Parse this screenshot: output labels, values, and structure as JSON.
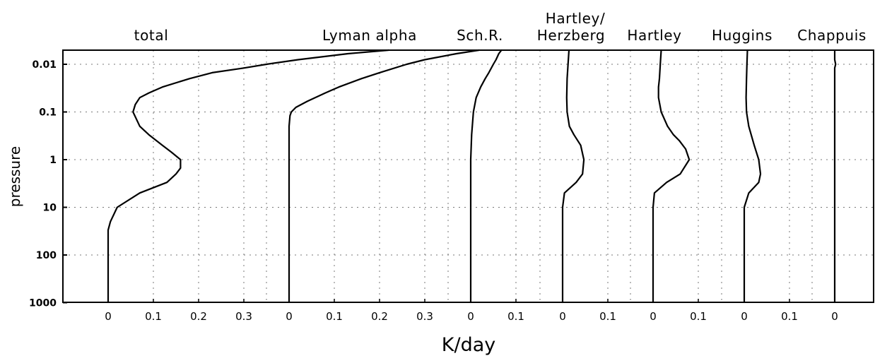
{
  "chart_data": {
    "type": "line",
    "xlabel": "K/day",
    "ylabel": "pressure",
    "y_scale": "log",
    "y_reversed": true,
    "ylim": [
      1000,
      0.005
    ],
    "y_ticks": [
      0.01,
      0.1,
      1,
      10,
      100,
      1000
    ],
    "y_tick_labels": [
      "0.01",
      "0.1",
      "1",
      "10",
      "100",
      "1000"
    ],
    "grid": true,
    "panels": [
      {
        "title": "total",
        "x_ticks": [
          0,
          0.1,
          0.2,
          0.3
        ],
        "x_tick_labels": [
          "0",
          "0.1",
          "0.2",
          "0.3"
        ],
        "y": [
          1000,
          30,
          20,
          10,
          5,
          3,
          2,
          1.5,
          1,
          0.7,
          0.5,
          0.3,
          0.2,
          0.1,
          0.07,
          0.05,
          0.04,
          0.03,
          0.02,
          0.015,
          0.012,
          0.01,
          0.008,
          0.006,
          0.005
        ],
        "x": [
          0,
          0,
          0.005,
          0.02,
          0.07,
          0.13,
          0.15,
          0.16,
          0.16,
          0.14,
          0.12,
          0.09,
          0.07,
          0.055,
          0.06,
          0.07,
          0.09,
          0.12,
          0.18,
          0.23,
          0.3,
          0.35,
          0.42,
          0.53,
          0.62
        ]
      },
      {
        "title": "Lyman alpha",
        "x_ticks": [
          0,
          0.1,
          0.2,
          0.3
        ],
        "x_tick_labels": [
          "0",
          "0.1",
          "0.2",
          "0.3"
        ],
        "y": [
          1000,
          1,
          0.2,
          0.12,
          0.1,
          0.08,
          0.06,
          0.04,
          0.03,
          0.02,
          0.015,
          0.01,
          0.008,
          0.006,
          0.005
        ],
        "x": [
          0,
          0,
          0,
          0.002,
          0.005,
          0.015,
          0.04,
          0.08,
          0.11,
          0.16,
          0.2,
          0.26,
          0.3,
          0.37,
          0.42
        ]
      },
      {
        "title": "Sch.R.",
        "x_ticks": [
          0,
          0.1
        ],
        "x_tick_labels": [
          "0",
          "0.1"
        ],
        "y": [
          1000,
          1,
          0.3,
          0.1,
          0.05,
          0.03,
          0.02,
          0.015,
          0.01,
          0.008,
          0.006,
          0.005
        ],
        "x": [
          0,
          0,
          0.002,
          0.006,
          0.012,
          0.022,
          0.032,
          0.04,
          0.05,
          0.056,
          0.062,
          0.068
        ]
      },
      {
        "title": "Hartley/ Herzberg",
        "x_ticks": [
          0,
          0.1
        ],
        "x_tick_labels": [
          "0",
          "0.1"
        ],
        "y": [
          1000,
          10,
          5,
          3,
          2,
          1,
          0.5,
          0.3,
          0.2,
          0.1,
          0.05,
          0.02,
          0.01,
          0.005
        ],
        "x": [
          0,
          0,
          0.004,
          0.03,
          0.044,
          0.047,
          0.04,
          0.025,
          0.015,
          0.01,
          0.009,
          0.01,
          0.012,
          0.014
        ]
      },
      {
        "title": "Hartley",
        "x_ticks": [
          0,
          0.1
        ],
        "x_tick_labels": [
          "0",
          "0.1"
        ],
        "y": [
          1000,
          10,
          5,
          3,
          2,
          1,
          0.6,
          0.4,
          0.3,
          0.2,
          0.1,
          0.05,
          0.03,
          0.02,
          0.01,
          0.005
        ],
        "x": [
          0,
          0,
          0.003,
          0.03,
          0.06,
          0.08,
          0.072,
          0.058,
          0.045,
          0.032,
          0.018,
          0.012,
          0.012,
          0.014,
          0.016,
          0.018
        ]
      },
      {
        "title": "Huggins",
        "x_ticks": [
          0,
          0.1
        ],
        "x_tick_labels": [
          "0",
          "0.1"
        ],
        "y": [
          1000,
          10,
          5,
          3,
          2,
          1,
          0.5,
          0.2,
          0.1,
          0.05,
          0.02,
          0.01,
          0.005
        ],
        "x": [
          0,
          0,
          0.01,
          0.032,
          0.036,
          0.032,
          0.022,
          0.01,
          0.005,
          0.004,
          0.005,
          0.006,
          0.007
        ]
      },
      {
        "title": "Chappuis",
        "x_ticks": [
          0
        ],
        "x_tick_labels": [
          "0"
        ],
        "y": [
          1000,
          0.012,
          0.01,
          0.008,
          0.005
        ],
        "x": [
          0,
          0,
          0.002,
          0,
          0
        ]
      }
    ]
  }
}
